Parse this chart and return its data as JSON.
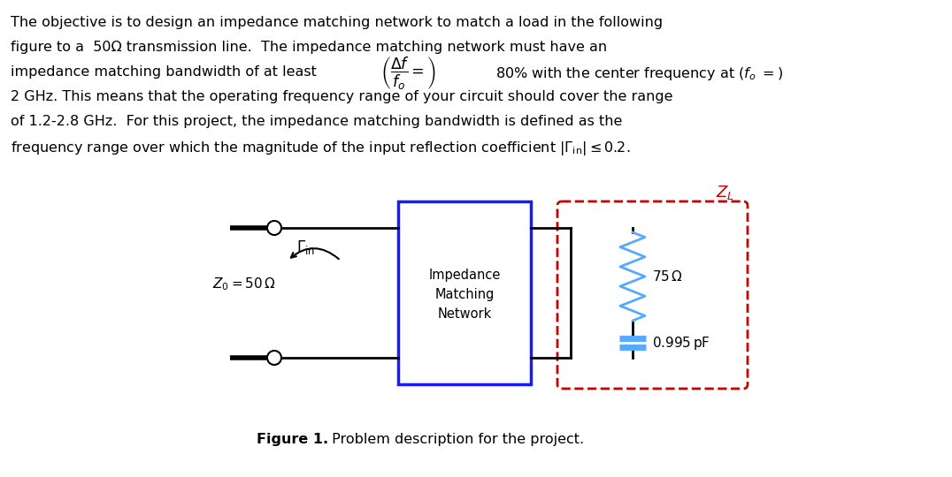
{
  "bg_color": "#ffffff",
  "blue_box_color": "#1a1aff",
  "red_dashed_color": "#cc0000",
  "resistor_color": "#55aaff",
  "capacitor_color": "#55aaff",
  "wire_color": "#000000",
  "zl_text_color": "#cc0000",
  "network_label_lines": [
    "Impedance",
    "Matching",
    "Network"
  ]
}
